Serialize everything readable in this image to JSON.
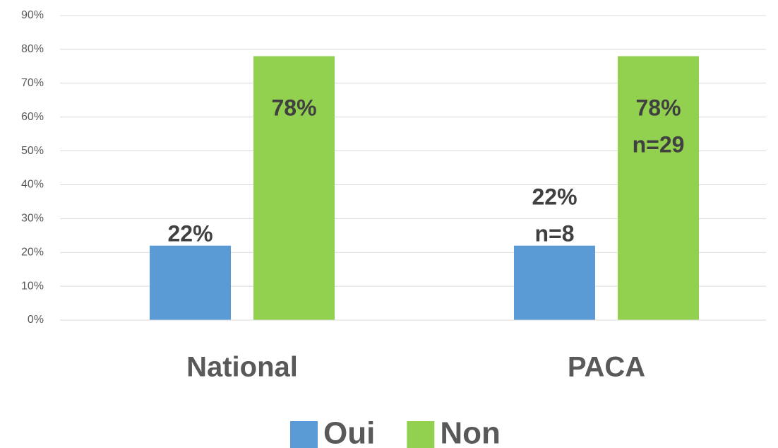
{
  "chart_data": {
    "type": "bar",
    "categories": [
      "National",
      "PACA"
    ],
    "series": [
      {
        "name": "Oui",
        "color": "#5b9bd5",
        "values": [
          22,
          22
        ],
        "value_labels": [
          "22%",
          "22%\nn=8"
        ]
      },
      {
        "name": "Non",
        "color": "#92d050",
        "values": [
          78,
          78
        ],
        "value_labels": [
          "78%",
          "78%\nn=29"
        ]
      }
    ],
    "ylim": [
      0,
      90
    ],
    "yticks": [
      {
        "value": 0,
        "label": "0%"
      },
      {
        "value": 10,
        "label": "10%"
      },
      {
        "value": 20,
        "label": "20%"
      },
      {
        "value": 30,
        "label": "30%"
      },
      {
        "value": 40,
        "label": "40%"
      },
      {
        "value": 50,
        "label": "50%"
      },
      {
        "value": 60,
        "label": "60%"
      },
      {
        "value": 70,
        "label": "70%"
      },
      {
        "value": 80,
        "label": "80%"
      },
      {
        "value": 90,
        "label": "90%"
      }
    ],
    "grid": true,
    "legend": "bottom"
  }
}
